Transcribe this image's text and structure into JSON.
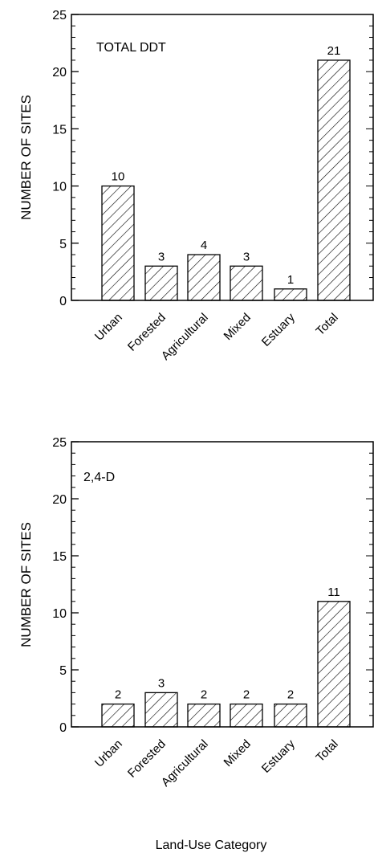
{
  "chart_data": [
    {
      "type": "bar",
      "title": "TOTAL DDT",
      "ylabel": "NUMBER OF SITES",
      "xlabel": "",
      "categories": [
        "Urban",
        "Forested",
        "Agricultural",
        "Mixed",
        "Estuary",
        "Total"
      ],
      "values": [
        10,
        3,
        4,
        3,
        1,
        21
      ],
      "data_labels": [
        "10",
        "3",
        "4",
        "3",
        "1",
        "21"
      ],
      "ylim": [
        0,
        25
      ],
      "yticks": [
        "0",
        "5",
        "10",
        "15",
        "20",
        "25"
      ],
      "fill": "diagonal-hatch",
      "grid": false
    },
    {
      "type": "bar",
      "title": "2,4-D",
      "ylabel": "NUMBER OF SITES",
      "xlabel": "Land-Use Category",
      "categories": [
        "Urban",
        "Forested",
        "Agricultural",
        "Mixed",
        "Estuary",
        "Total"
      ],
      "values": [
        2,
        3,
        2,
        2,
        2,
        11
      ],
      "data_labels": [
        "2",
        "3",
        "2",
        "2",
        "2",
        "11"
      ],
      "ylim": [
        0,
        25
      ],
      "yticks": [
        "0",
        "5",
        "10",
        "15",
        "20",
        "25"
      ],
      "fill": "diagonal-hatch",
      "grid": false
    }
  ]
}
